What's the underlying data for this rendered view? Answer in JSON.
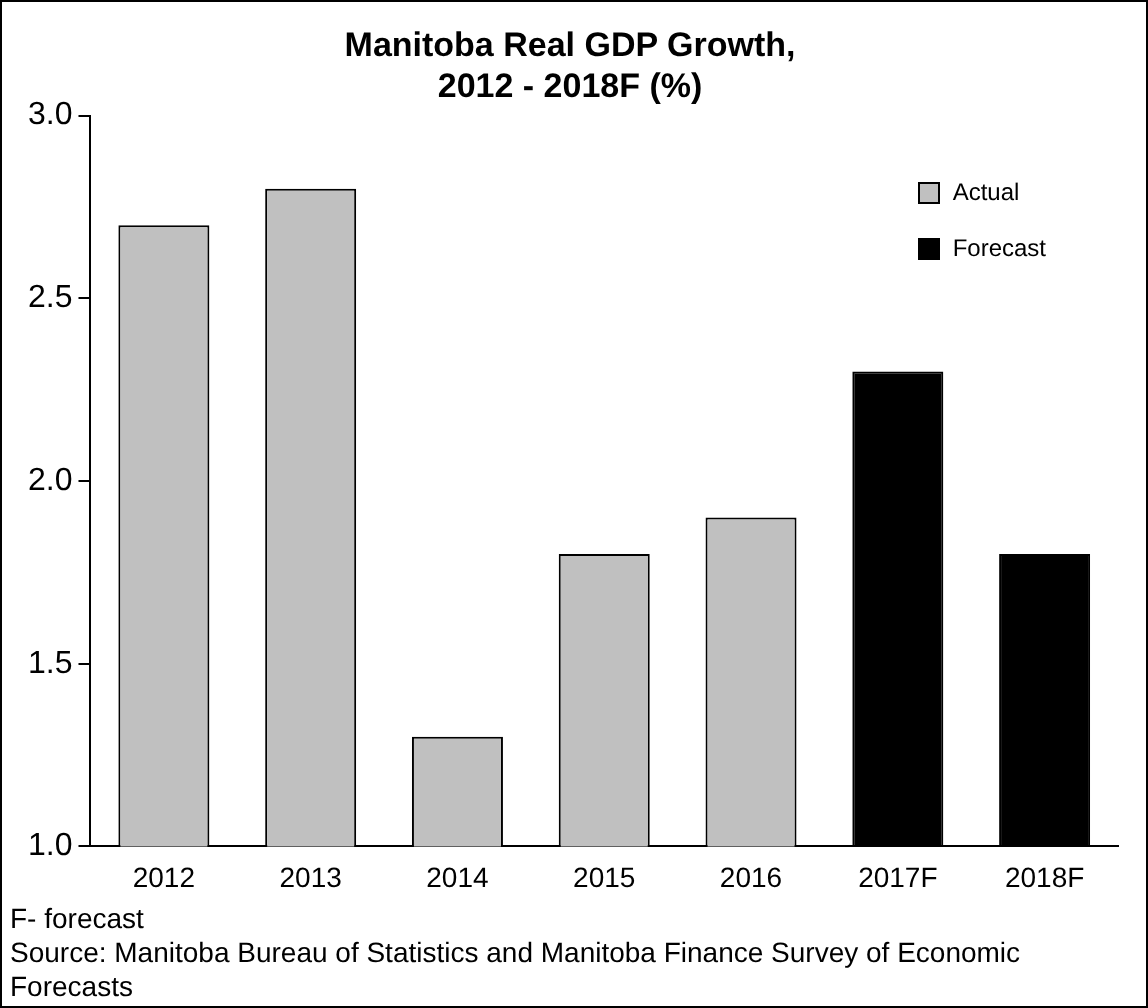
{
  "chart_data": {
    "type": "bar",
    "title": [
      "Manitoba Real GDP Growth,",
      "2012 - 2018F (%)"
    ],
    "categories": [
      "2012",
      "2013",
      "2014",
      "2015",
      "2016",
      "2017F",
      "2018F"
    ],
    "series": [
      {
        "name": "Actual",
        "color": "#c0c0c0",
        "values": [
          2.7,
          2.8,
          1.3,
          1.8,
          1.9,
          null,
          null
        ]
      },
      {
        "name": "Forecast",
        "color": "#000000",
        "values": [
          null,
          null,
          null,
          null,
          null,
          2.3,
          1.8
        ]
      }
    ],
    "ylim": [
      1.0,
      3.0
    ],
    "yticks": [
      {
        "value": 1.0,
        "label": "1.0"
      },
      {
        "value": 1.5,
        "label": "1.5"
      },
      {
        "value": 2.0,
        "label": "2.0"
      },
      {
        "value": 2.5,
        "label": "2.5"
      },
      {
        "value": 3.0,
        "label": "3.0"
      }
    ],
    "grid": false,
    "legend": "top right",
    "annotations": [
      "F- forecast",
      "Source: Manitoba Bureau of Statistics and Manitoba Finance Survey of Economic Forecasts"
    ]
  }
}
